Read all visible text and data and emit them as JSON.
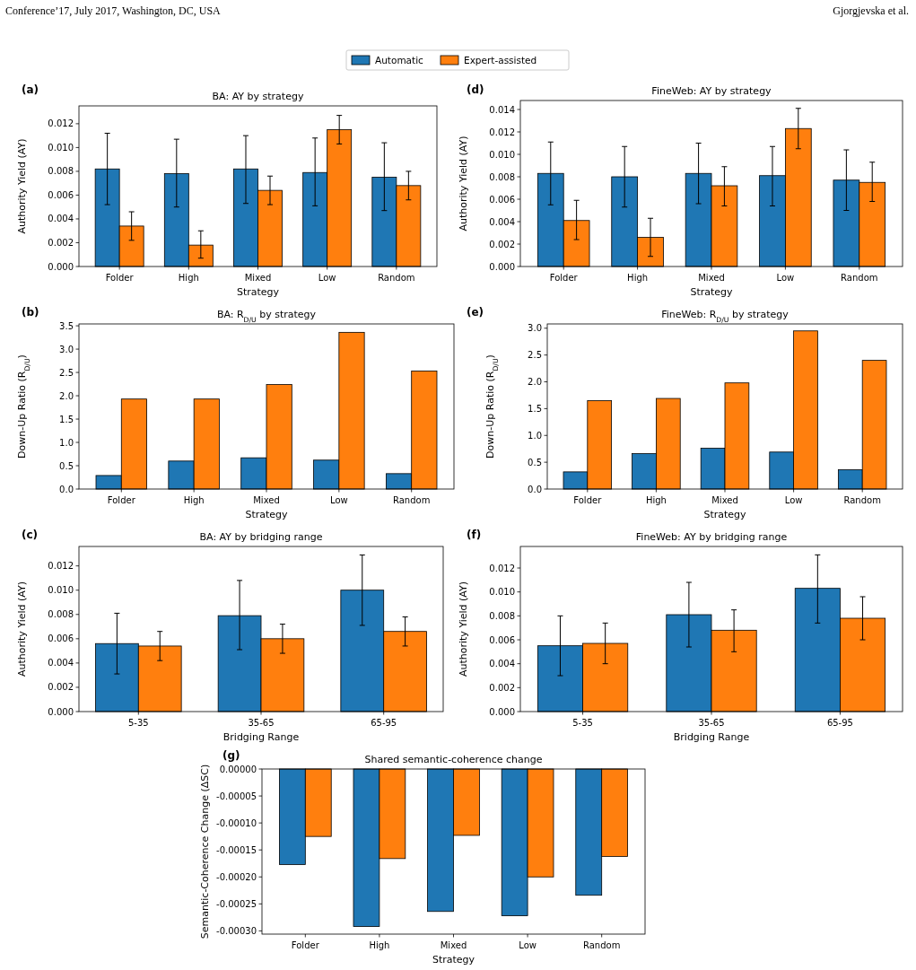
{
  "chart_data": [
    {
      "type": "bar",
      "title": "BA: AY by strategy",
      "xlabel": "Strategy",
      "ylabel": "Authority Yield (AY)",
      "annotations": [
        "(a)",
        "Conference’17, July 2017, Washington, DC, USA",
        "Gjorgjevska et al."
      ],
      "legend": "top",
      "categories": [
        "Folder",
        "High",
        "Mixed",
        "Low",
        "Random"
      ],
      "ylim": [
        0,
        0.0135
      ],
      "yticks": [
        {
          "value": 0,
          "label": "0.000"
        },
        {
          "value": 0.002,
          "label": "0.002"
        },
        {
          "value": 0.004,
          "label": "0.004"
        },
        {
          "value": 0.006,
          "label": "0.006"
        },
        {
          "value": 0.008,
          "label": "0.008"
        },
        {
          "value": 0.01,
          "label": "0.010"
        },
        {
          "value": 0.012,
          "label": "0.012"
        }
      ],
      "series": [
        {
          "name": "Automatic",
          "color": "#1f77b4",
          "values": [
            0.0082,
            0.0078,
            0.0082,
            0.0079,
            0.0075
          ],
          "errors": [
            [
              0.0052,
              0.0112
            ],
            [
              0.005,
              0.0107
            ],
            [
              0.0053,
              0.011
            ],
            [
              0.0051,
              0.0108
            ],
            [
              0.0047,
              0.0104
            ]
          ]
        },
        {
          "name": "Expert-assisted",
          "color": "#ff7f0e",
          "values": [
            0.0034,
            0.0018,
            0.0064,
            0.0115,
            0.0068
          ],
          "errors": [
            [
              0.0022,
              0.0046
            ],
            [
              0.0007,
              0.003
            ],
            [
              0.0052,
              0.0076
            ],
            [
              0.0103,
              0.0127
            ],
            [
              0.0056,
              0.008
            ]
          ]
        }
      ]
    },
    {
      "type": "bar",
      "title": "FineWeb: AY by strategy",
      "xlabel": "Strategy",
      "ylabel": "Authority Yield (AY)",
      "annotations": [
        "(d)"
      ],
      "categories": [
        "Folder",
        "High",
        "Mixed",
        "Low",
        "Random"
      ],
      "ylim": [
        0,
        0.0148
      ],
      "yticks": [
        {
          "value": 0,
          "label": "0.000"
        },
        {
          "value": 0.002,
          "label": "0.002"
        },
        {
          "value": 0.004,
          "label": "0.004"
        },
        {
          "value": 0.006,
          "label": "0.006"
        },
        {
          "value": 0.008,
          "label": "0.008"
        },
        {
          "value": 0.01,
          "label": "0.010"
        },
        {
          "value": 0.012,
          "label": "0.012"
        },
        {
          "value": 0.014,
          "label": "0.014"
        }
      ],
      "series": [
        {
          "color": "#1f77b4",
          "values": [
            0.0083,
            0.008,
            0.0083,
            0.0081,
            0.0077
          ],
          "errors": [
            [
              0.0055,
              0.0111
            ],
            [
              0.0053,
              0.0107
            ],
            [
              0.0056,
              0.011
            ],
            [
              0.0054,
              0.0107
            ],
            [
              0.005,
              0.0104
            ]
          ]
        },
        {
          "color": "#ff7f0e",
          "values": [
            0.0041,
            0.0026,
            0.0072,
            0.0123,
            0.0075
          ],
          "errors": [
            [
              0.0024,
              0.0059
            ],
            [
              0.0009,
              0.0043
            ],
            [
              0.0054,
              0.0089
            ],
            [
              0.0105,
              0.0141
            ],
            [
              0.0058,
              0.0093
            ]
          ]
        }
      ]
    },
    {
      "type": "bar",
      "title": "BA: R$_{D/U}$ by strategy",
      "xlabel": "Strategy",
      "ylabel": "Down-Up Ratio (R$_{D/U}$)",
      "annotations": [
        "(b)"
      ],
      "categories": [
        "Folder",
        "High",
        "Mixed",
        "Low",
        "Random"
      ],
      "ylim": [
        0,
        3.54
      ],
      "yticks": [
        {
          "value": 0,
          "label": "0.0"
        },
        {
          "value": 0.5,
          "label": "0.5"
        },
        {
          "value": 1,
          "label": "1.0"
        },
        {
          "value": 1.5,
          "label": "1.5"
        },
        {
          "value": 2,
          "label": "2.0"
        },
        {
          "value": 2.5,
          "label": "2.5"
        },
        {
          "value": 3,
          "label": "3.0"
        },
        {
          "value": 3.5,
          "label": "3.5"
        }
      ],
      "series": [
        {
          "color": "#1f77b4",
          "values": [
            0.29,
            0.6,
            0.67,
            0.62,
            0.33
          ]
        },
        {
          "color": "#ff7f0e",
          "values": [
            1.93,
            1.93,
            2.24,
            3.36,
            2.53
          ]
        }
      ]
    },
    {
      "type": "bar",
      "title": "FineWeb: R$_{D/U}$ by strategy",
      "xlabel": "Strategy",
      "ylabel": "Down-Up Ratio (R$_{D/U}$)",
      "annotations": [
        "(e)"
      ],
      "categories": [
        "Folder",
        "High",
        "Mixed",
        "Low",
        "Random"
      ],
      "ylim": [
        0,
        3.08
      ],
      "yticks": [
        {
          "value": 0,
          "label": "0.0"
        },
        {
          "value": 0.5,
          "label": "0.5"
        },
        {
          "value": 1,
          "label": "1.0"
        },
        {
          "value": 1.5,
          "label": "1.5"
        },
        {
          "value": 2,
          "label": "2.0"
        },
        {
          "value": 2.5,
          "label": "2.5"
        },
        {
          "value": 3,
          "label": "3.0"
        }
      ],
      "series": [
        {
          "color": "#1f77b4",
          "values": [
            0.32,
            0.66,
            0.76,
            0.69,
            0.36
          ]
        },
        {
          "color": "#ff7f0e",
          "values": [
            1.65,
            1.69,
            1.98,
            2.95,
            2.4
          ]
        }
      ]
    },
    {
      "type": "bar",
      "title": "BA: AY by bridging range",
      "xlabel": "Bridging Range",
      "ylabel": "Authority Yield (AY)",
      "annotations": [
        "(c)"
      ],
      "categories": [
        "5-35",
        "35-65",
        "65-95"
      ],
      "ylim": [
        0,
        0.0136
      ],
      "yticks": [
        {
          "value": 0,
          "label": "0.000"
        },
        {
          "value": 0.002,
          "label": "0.002"
        },
        {
          "value": 0.004,
          "label": "0.004"
        },
        {
          "value": 0.006,
          "label": "0.006"
        },
        {
          "value": 0.008,
          "label": "0.008"
        },
        {
          "value": 0.01,
          "label": "0.010"
        },
        {
          "value": 0.012,
          "label": "0.012"
        }
      ],
      "series": [
        {
          "color": "#1f77b4",
          "values": [
            0.0056,
            0.0079,
            0.01
          ],
          "errors": [
            [
              0.0031,
              0.0081
            ],
            [
              0.0051,
              0.0108
            ],
            [
              0.0071,
              0.0129
            ]
          ]
        },
        {
          "color": "#ff7f0e",
          "values": [
            0.0054,
            0.006,
            0.0066
          ],
          "errors": [
            [
              0.0042,
              0.0066
            ],
            [
              0.0048,
              0.0072
            ],
            [
              0.0054,
              0.0078
            ]
          ]
        }
      ]
    },
    {
      "type": "bar",
      "title": "FineWeb: AY by bridging range",
      "xlabel": "Bridging Range",
      "ylabel": "Authority Yield (AY)",
      "annotations": [
        "(f)"
      ],
      "categories": [
        "5-35",
        "35-65",
        "65-95"
      ],
      "ylim": [
        0,
        0.0138
      ],
      "yticks": [
        {
          "value": 0,
          "label": "0.000"
        },
        {
          "value": 0.002,
          "label": "0.002"
        },
        {
          "value": 0.004,
          "label": "0.004"
        },
        {
          "value": 0.006,
          "label": "0.006"
        },
        {
          "value": 0.008,
          "label": "0.008"
        },
        {
          "value": 0.01,
          "label": "0.010"
        },
        {
          "value": 0.012,
          "label": "0.012"
        }
      ],
      "series": [
        {
          "color": "#1f77b4",
          "values": [
            0.0055,
            0.0081,
            0.0103
          ],
          "errors": [
            [
              0.003,
              0.008
            ],
            [
              0.0054,
              0.0108
            ],
            [
              0.0074,
              0.0131
            ]
          ]
        },
        {
          "color": "#ff7f0e",
          "values": [
            0.0057,
            0.0068,
            0.0078
          ],
          "errors": [
            [
              0.004,
              0.0074
            ],
            [
              0.005,
              0.0085
            ],
            [
              0.006,
              0.0096
            ]
          ]
        }
      ]
    },
    {
      "type": "bar",
      "title": "Shared semantic-coherence change",
      "xlabel": "Strategy",
      "ylabel": "Semantic-Coherence Change (ΔSC)",
      "annotations": [
        "(g)"
      ],
      "categories": [
        "Folder",
        "High",
        "Mixed",
        "Low",
        "Random"
      ],
      "ylim": [
        -0.000306,
        0
      ],
      "yticks": [
        {
          "value": -0.0003,
          "label": "-0.00030"
        },
        {
          "value": -0.00025,
          "label": "-0.00025"
        },
        {
          "value": -0.0002,
          "label": "-0.00020"
        },
        {
          "value": -0.00015,
          "label": "-0.00015"
        },
        {
          "value": -0.0001,
          "label": "-0.00010"
        },
        {
          "value": -5e-05,
          "label": "-0.00005"
        },
        {
          "value": 0,
          "label": "0.00000"
        }
      ],
      "series": [
        {
          "color": "#1f77b4",
          "values": [
            -0.000177,
            -0.000292,
            -0.000264,
            -0.000272,
            -0.000234
          ]
        },
        {
          "color": "#ff7f0e",
          "values": [
            -0.000125,
            -0.000166,
            -0.000123,
            -0.0002,
            -0.000162
          ]
        }
      ]
    }
  ]
}
